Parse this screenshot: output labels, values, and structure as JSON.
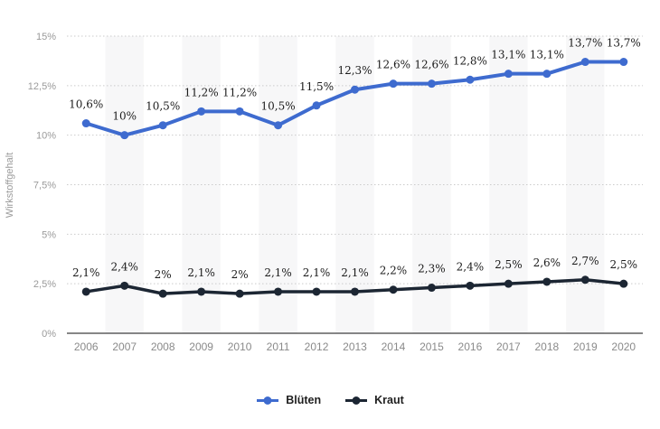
{
  "chart_data": {
    "type": "line",
    "title": "",
    "ylabel": "Wirkstoffgehalt",
    "xlabel": "",
    "categories": [
      "2006",
      "2007",
      "2008",
      "2009",
      "2010",
      "2011",
      "2012",
      "2013",
      "2014",
      "2015",
      "2016",
      "2017",
      "2018",
      "2019",
      "2020"
    ],
    "series": [
      {
        "name": "Blüten",
        "slug": "blueten",
        "color": "#3E6BCF",
        "values": [
          10.6,
          10,
          10.5,
          11.2,
          11.2,
          10.5,
          11.5,
          12.3,
          12.6,
          12.6,
          12.8,
          13.1,
          13.1,
          13.7,
          13.7
        ],
        "labels": [
          "10,6%",
          "10%",
          "10,5%",
          "11,2%",
          "11,2%",
          "10,5%",
          "11,5%",
          "12,3%",
          "12,6%",
          "12,6%",
          "12,8%",
          "13,1%",
          "13,1%",
          "13,7%",
          "13,7%"
        ]
      },
      {
        "name": "Kraut",
        "slug": "kraut",
        "color": "#1C2633",
        "values": [
          2.1,
          2.4,
          2,
          2.1,
          2,
          2.1,
          2.1,
          2.1,
          2.2,
          2.3,
          2.4,
          2.5,
          2.6,
          2.7,
          2.5
        ],
        "labels": [
          "2,1%",
          "2,4%",
          "2%",
          "2,1%",
          "2%",
          "2,1%",
          "2,1%",
          "2,1%",
          "2,2%",
          "2,3%",
          "2,4%",
          "2,5%",
          "2,6%",
          "2,7%",
          "2,5%"
        ]
      }
    ],
    "ylim": [
      0,
      15
    ],
    "yticks": [
      {
        "value": 0,
        "label": "0%"
      },
      {
        "value": 2.5,
        "label": "2,5%"
      },
      {
        "value": 5,
        "label": "5%"
      },
      {
        "value": 7.5,
        "label": "7,5%"
      },
      {
        "value": 10,
        "label": "10%"
      },
      {
        "value": 12.5,
        "label": "12,5%"
      },
      {
        "value": 15,
        "label": "15%"
      }
    ],
    "grid": true,
    "legend_position": "bottom"
  }
}
